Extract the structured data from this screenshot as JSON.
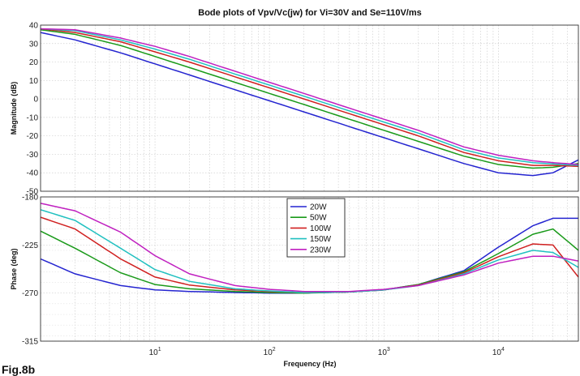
{
  "figure_label": "Fig.8b",
  "chart_data": [
    {
      "type": "line",
      "title": "Bode plots of Vpv/Vc(jw) for Vi=30V and Se=110V/ms",
      "xlabel": "",
      "ylabel": "Magnitude (dB)",
      "xscale": "log",
      "xlim": [
        1,
        50000
      ],
      "ylim": [
        -50,
        40
      ],
      "yticks": [
        40,
        30,
        20,
        10,
        0,
        -10,
        -20,
        -30,
        -40,
        -50
      ],
      "grid": true,
      "series": [
        {
          "name": "20W",
          "color": "#2424d0",
          "x": [
            1,
            2,
            5,
            10,
            20,
            50,
            100,
            200,
            500,
            1000,
            2000,
            5000,
            10000,
            20000,
            30000,
            50000
          ],
          "y": [
            36,
            32,
            25,
            19,
            13,
            5,
            -1,
            -7,
            -15,
            -21,
            -27,
            -35,
            -40,
            -41.5,
            -40,
            -33
          ]
        },
        {
          "name": "50W",
          "color": "#1a9a1a",
          "x": [
            1,
            2,
            5,
            10,
            20,
            50,
            100,
            200,
            500,
            1000,
            2000,
            5000,
            10000,
            20000,
            30000,
            50000
          ],
          "y": [
            37.5,
            35,
            29,
            23,
            17,
            9,
            3,
            -3,
            -11,
            -17,
            -23,
            -31,
            -35.5,
            -37.5,
            -37,
            -35
          ]
        },
        {
          "name": "100W",
          "color": "#d02020",
          "x": [
            1,
            2,
            5,
            10,
            20,
            50,
            100,
            200,
            500,
            1000,
            2000,
            5000,
            10000,
            20000,
            30000,
            50000
          ],
          "y": [
            38,
            36,
            31,
            25.5,
            20,
            12,
            6,
            0,
            -8,
            -14,
            -20,
            -29,
            -33.5,
            -36,
            -36,
            -36.5
          ]
        },
        {
          "name": "150W",
          "color": "#20c0c0",
          "x": [
            1,
            2,
            5,
            10,
            20,
            50,
            100,
            200,
            500,
            1000,
            2000,
            5000,
            10000,
            20000,
            30000,
            50000
          ],
          "y": [
            38,
            37,
            32,
            27,
            21.5,
            13.5,
            7.5,
            1.5,
            -6.5,
            -12.5,
            -18.5,
            -27.5,
            -32,
            -34.5,
            -35.2,
            -36
          ]
        },
        {
          "name": "230W",
          "color": "#c020c0",
          "x": [
            1,
            2,
            5,
            10,
            20,
            50,
            100,
            200,
            500,
            1000,
            2000,
            5000,
            10000,
            20000,
            30000,
            50000
          ],
          "y": [
            38,
            37.5,
            33,
            28.5,
            23,
            15,
            9,
            3,
            -5,
            -11,
            -17,
            -26,
            -30.5,
            -33.5,
            -34.5,
            -35.5
          ]
        }
      ]
    },
    {
      "type": "line",
      "title": "",
      "xlabel": "Frequency (Hz)",
      "ylabel": "Phase (deg)",
      "xscale": "log",
      "xlim": [
        1,
        50000
      ],
      "ylim": [
        -315,
        -180
      ],
      "yticks": [
        -180,
        -225,
        -270,
        -315
      ],
      "xticks": [
        10,
        100,
        1000,
        10000
      ],
      "xticklabels": [
        "10^1",
        "10^2",
        "10^3",
        "10^4"
      ],
      "grid": true,
      "legend": {
        "placement": "top-center"
      },
      "series": [
        {
          "name": "20W",
          "color": "#2424d0",
          "x": [
            1,
            2,
            5,
            10,
            20,
            50,
            100,
            200,
            500,
            1000,
            2000,
            5000,
            10000,
            20000,
            30000,
            50000
          ],
          "y": [
            -238,
            -252,
            -263,
            -267,
            -268.5,
            -269.5,
            -270,
            -270,
            -269,
            -267,
            -262,
            -249,
            -227,
            -207,
            -200,
            -200
          ]
        },
        {
          "name": "50W",
          "color": "#1a9a1a",
          "x": [
            1,
            2,
            5,
            10,
            20,
            50,
            100,
            200,
            500,
            1000,
            2000,
            5000,
            10000,
            20000,
            30000,
            50000
          ],
          "y": [
            -212,
            -228,
            -251,
            -262,
            -266,
            -268.5,
            -269.5,
            -270,
            -269,
            -267,
            -262,
            -250,
            -233,
            -215,
            -210,
            -230
          ]
        },
        {
          "name": "100W",
          "color": "#d02020",
          "x": [
            1,
            2,
            5,
            10,
            20,
            50,
            100,
            200,
            500,
            1000,
            2000,
            5000,
            10000,
            20000,
            30000,
            50000
          ],
          "y": [
            -199,
            -210,
            -238,
            -255,
            -262.5,
            -267,
            -268.5,
            -269.5,
            -269,
            -267,
            -262.5,
            -251,
            -236,
            -224,
            -225,
            -255
          ]
        },
        {
          "name": "150W",
          "color": "#20c0c0",
          "x": [
            1,
            2,
            5,
            10,
            20,
            50,
            100,
            200,
            500,
            1000,
            2000,
            5000,
            10000,
            20000,
            30000,
            50000
          ],
          "y": [
            -192,
            -202,
            -228,
            -248,
            -259,
            -266,
            -268,
            -269.5,
            -269,
            -267,
            -263,
            -252,
            -239,
            -230,
            -232,
            -246
          ]
        },
        {
          "name": "230W",
          "color": "#c020c0",
          "x": [
            1,
            2,
            5,
            10,
            20,
            50,
            100,
            200,
            500,
            1000,
            2000,
            5000,
            10000,
            20000,
            30000,
            50000
          ],
          "y": [
            -186,
            -193,
            -213,
            -235,
            -252,
            -263,
            -266.5,
            -268.5,
            -268.5,
            -266.5,
            -263,
            -253,
            -242,
            -235.5,
            -235.5,
            -240
          ]
        }
      ]
    }
  ]
}
